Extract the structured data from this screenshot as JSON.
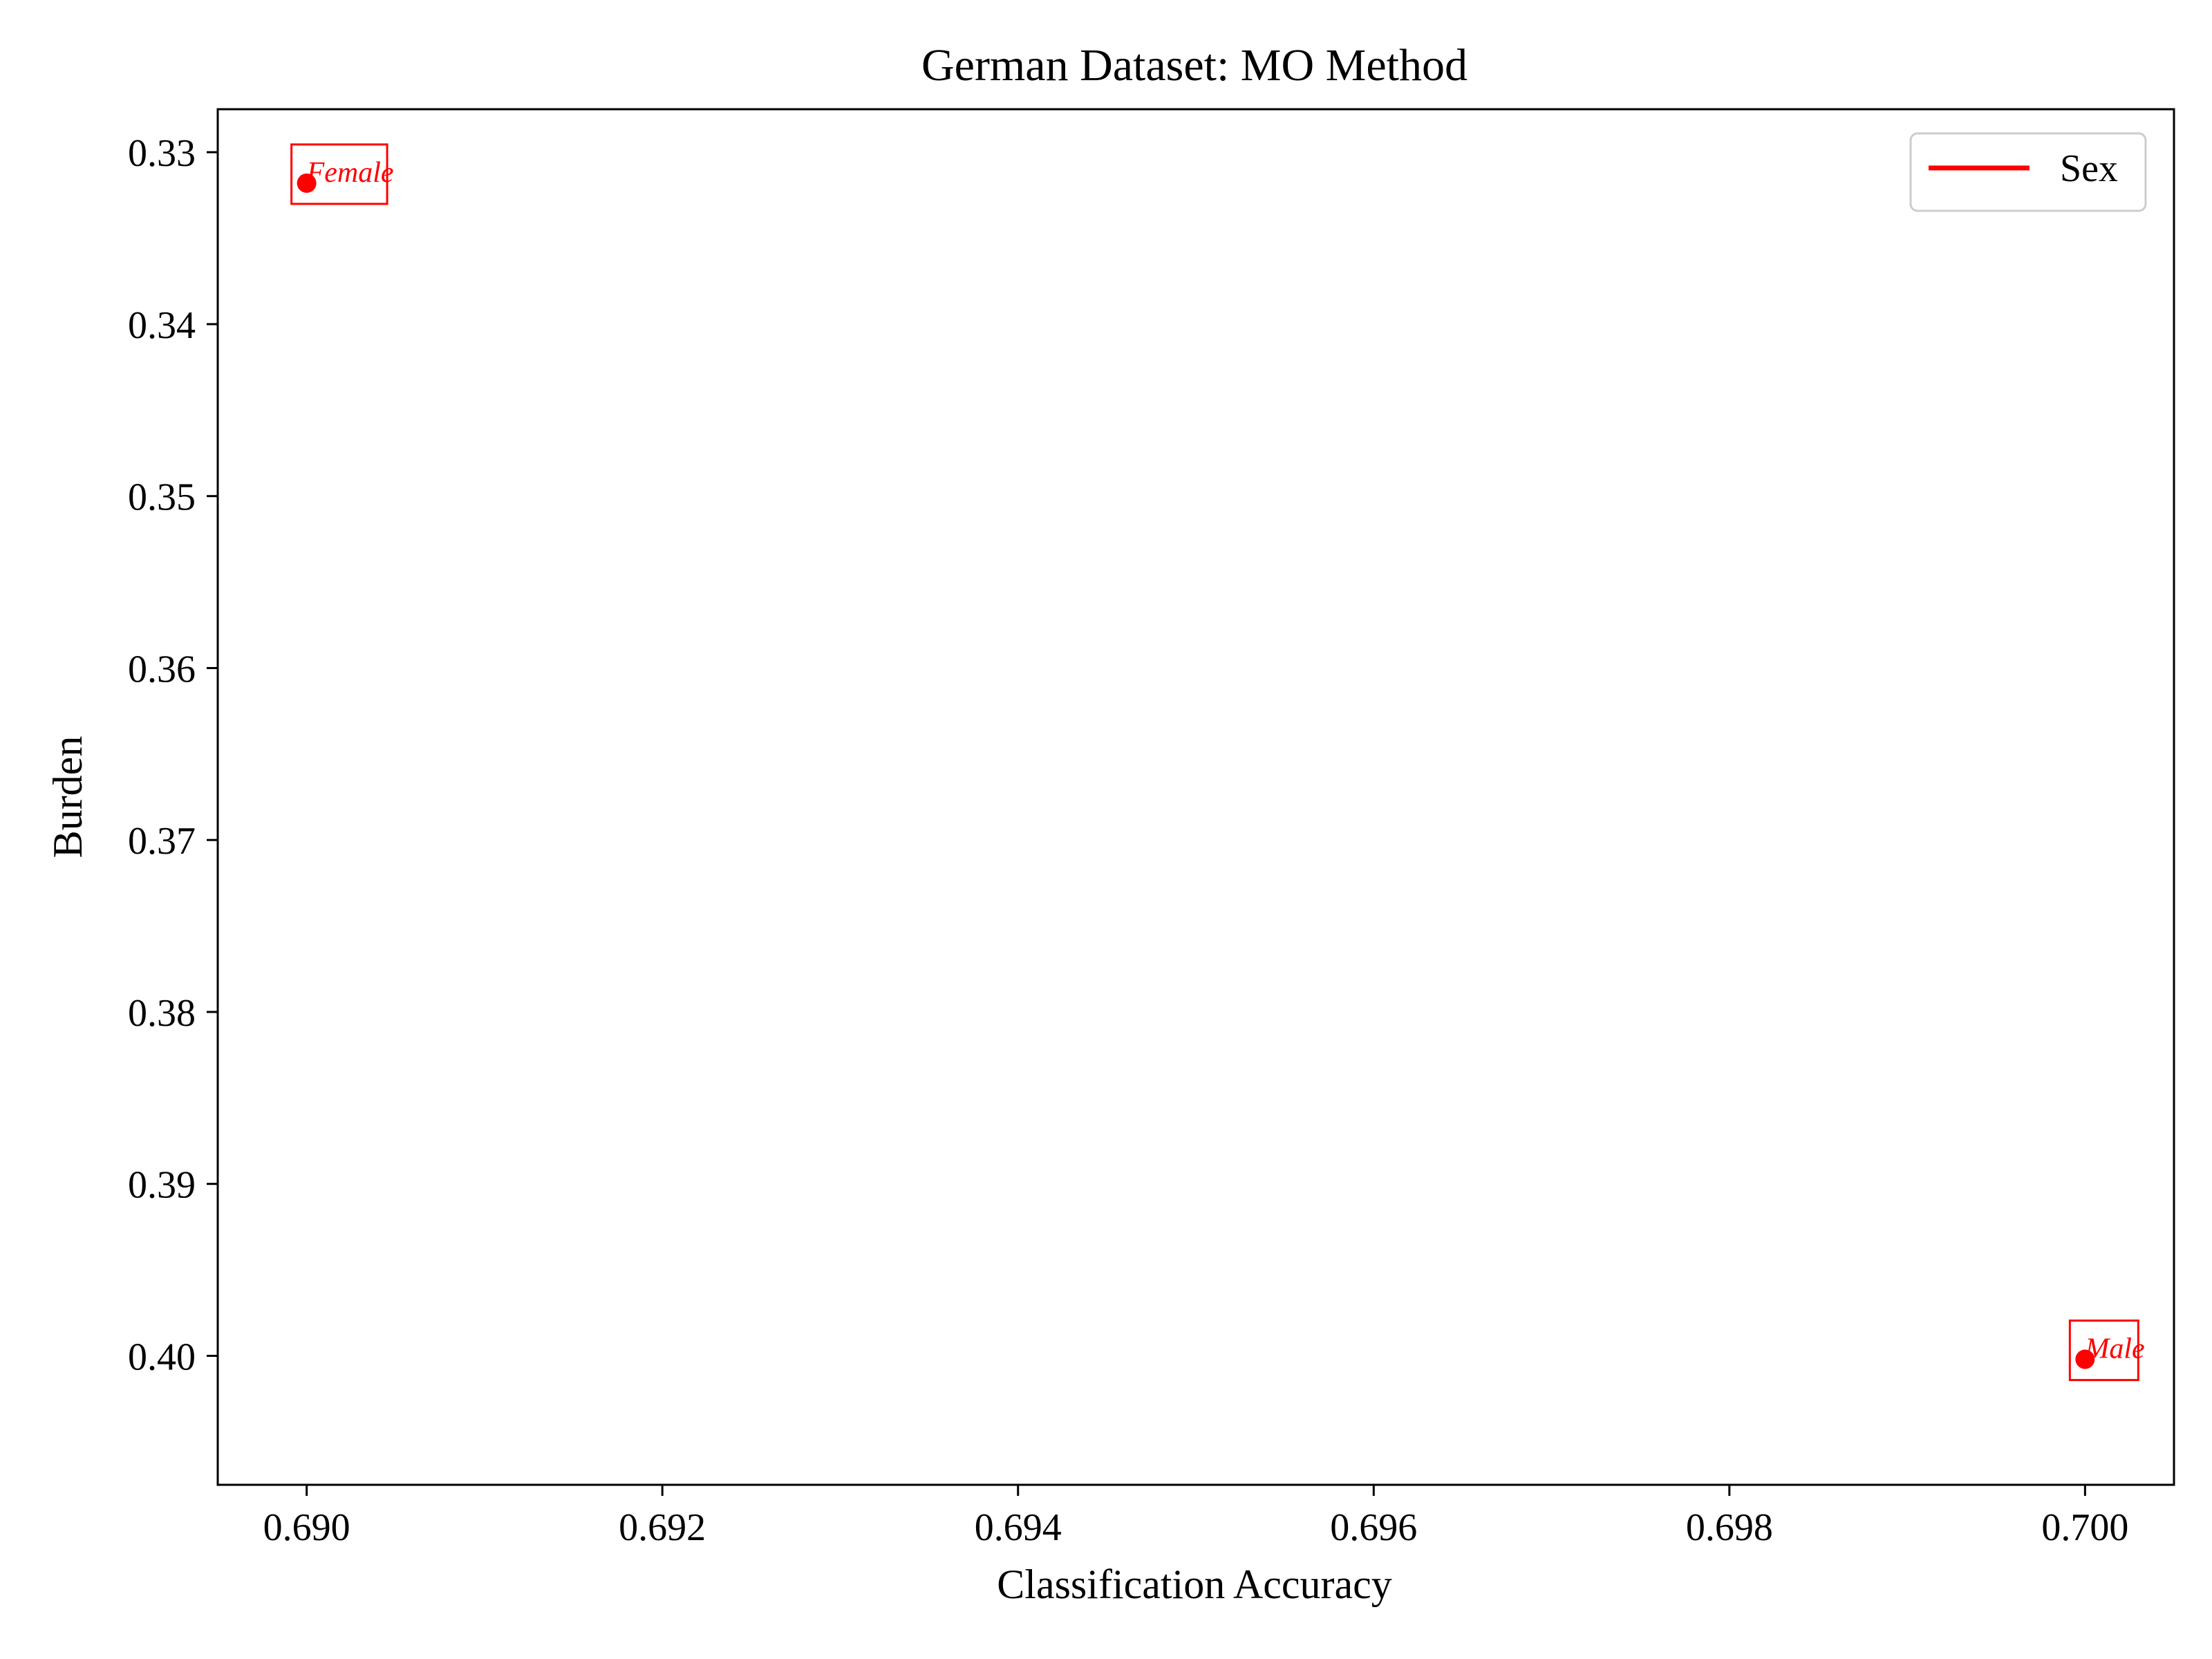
{
  "chart_data": {
    "type": "scatter",
    "title": "German Dataset: MO Method",
    "xlabel": "Classification Accuracy",
    "ylabel": "Burden",
    "xlim": [
      0.6895,
      0.7005
    ],
    "ylim": [
      0.3275,
      0.4075
    ],
    "y_inverted": true,
    "xticks": [
      "0.690",
      "0.692",
      "0.694",
      "0.696",
      "0.698",
      "0.700"
    ],
    "xtick_values": [
      0.69,
      0.692,
      0.694,
      0.696,
      0.698,
      0.7
    ],
    "yticks": [
      "0.33",
      "0.34",
      "0.35",
      "0.36",
      "0.37",
      "0.38",
      "0.39",
      "0.40"
    ],
    "ytick_values": [
      0.33,
      0.34,
      0.35,
      0.36,
      0.37,
      0.38,
      0.39,
      0.4
    ],
    "grid": false,
    "legend": {
      "placement": "top-right",
      "entries": [
        "Sex"
      ]
    },
    "series": [
      {
        "name": "Sex",
        "color": "#ff0000",
        "points": [
          {
            "x": 0.69,
            "y": 0.3318,
            "label": "Female"
          },
          {
            "x": 0.7,
            "y": 0.4002,
            "label": "Male"
          }
        ]
      }
    ]
  }
}
